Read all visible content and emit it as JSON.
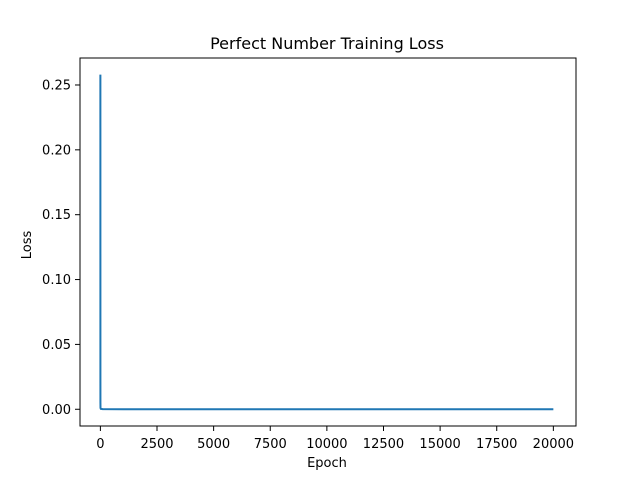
{
  "chart_data": {
    "type": "line",
    "title": "Perfect Number Training Loss",
    "xlabel": "Epoch",
    "ylabel": "Loss",
    "xlim": [
      -900,
      21000
    ],
    "ylim": [
      -0.0129,
      0.2708
    ],
    "x_ticks": [
      0,
      2500,
      5000,
      7500,
      10000,
      12500,
      15000,
      17500,
      20000
    ],
    "y_ticks": [
      0.0,
      0.05,
      0.1,
      0.15,
      0.2,
      0.25
    ],
    "y_tick_labels": [
      "0.00",
      "0.05",
      "0.10",
      "0.15",
      "0.20",
      "0.25"
    ],
    "grid": false,
    "series": [
      {
        "color": "#1f77b4",
        "x": [
          0,
          1,
          2,
          5,
          20,
          100,
          1000,
          5000,
          10000,
          15000,
          20000
        ],
        "y": [
          0.258,
          0.02,
          0.005,
          0.001,
          0.0003,
          0.0001,
          5e-05,
          3e-05,
          2e-05,
          2e-05,
          2e-05
        ]
      }
    ]
  }
}
